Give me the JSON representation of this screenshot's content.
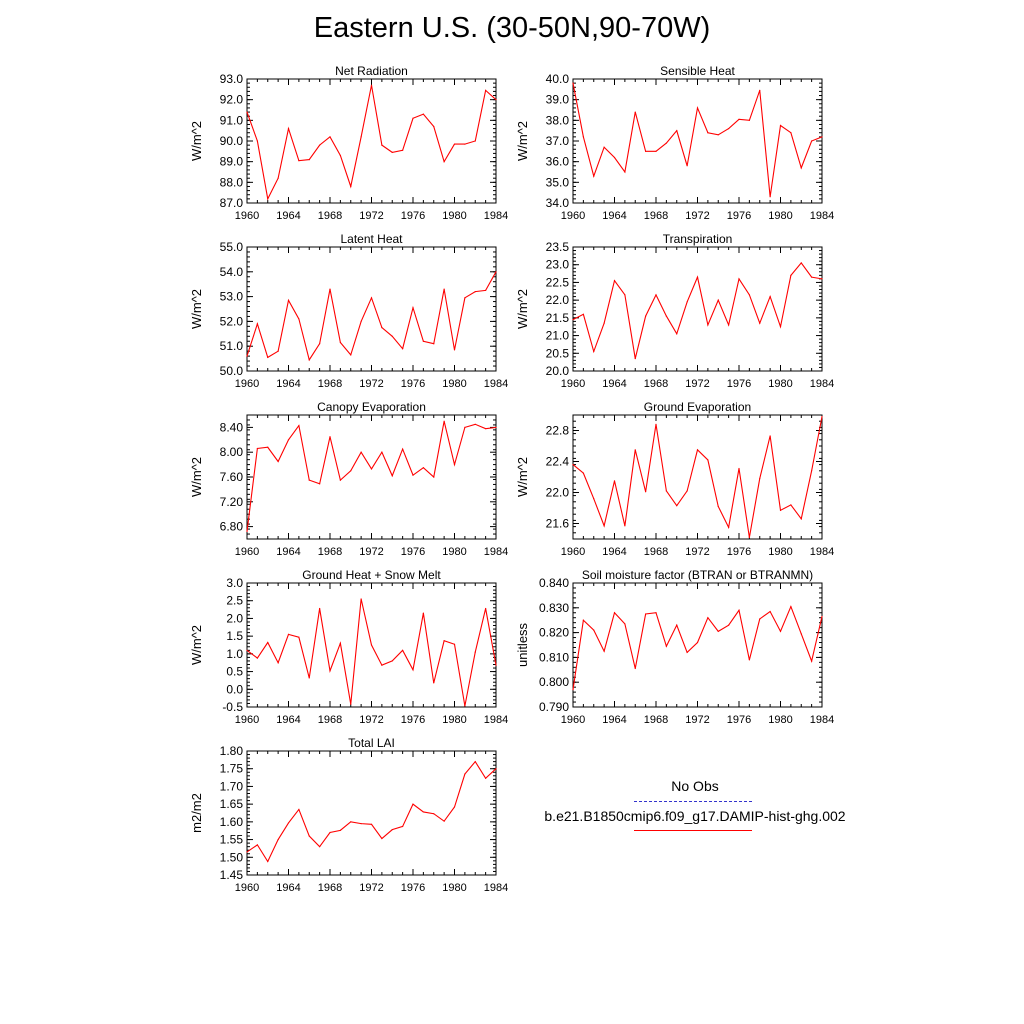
{
  "title": "Eastern U.S. (30-50N,90-70W)",
  "colors": {
    "model": "#ff0000",
    "obs": "#3333cc",
    "axis": "#000000"
  },
  "legend": {
    "obs_label": "No Obs",
    "model_label": "b.e21.B1850cmip6.f09_g17.DAMIP-hist-ghg.002"
  },
  "chart_data": [
    {
      "type": "line",
      "title": "Net Radiation",
      "ylabel": "W/m^2",
      "x": [
        1960,
        1961,
        1962,
        1963,
        1964,
        1965,
        1966,
        1967,
        1968,
        1969,
        1970,
        1971,
        1972,
        1973,
        1974,
        1975,
        1976,
        1977,
        1978,
        1979,
        1980,
        1981,
        1982,
        1983,
        1984
      ],
      "xlim": [
        1960,
        1984
      ],
      "xticks": [
        "1960",
        "1964",
        "1968",
        "1972",
        "1976",
        "1980",
        "1984"
      ],
      "ylim": [
        87.0,
        93.0
      ],
      "yticks": [
        "87.0",
        "88.0",
        "89.0",
        "90.0",
        "91.0",
        "92.0",
        "93.0"
      ],
      "series": [
        {
          "values": [
            91.4,
            90.0,
            87.2,
            88.2,
            90.6,
            89.05,
            89.1,
            89.8,
            90.2,
            89.3,
            87.8,
            90.2,
            92.7,
            89.8,
            89.45,
            89.55,
            91.1,
            91.3,
            90.7,
            89.0,
            89.85,
            89.85,
            90.0,
            92.45,
            92.0
          ]
        }
      ]
    },
    {
      "type": "line",
      "title": "Sensible Heat",
      "ylabel": "W/m^2",
      "x": [
        1960,
        1961,
        1962,
        1963,
        1964,
        1965,
        1966,
        1967,
        1968,
        1969,
        1970,
        1971,
        1972,
        1973,
        1974,
        1975,
        1976,
        1977,
        1978,
        1979,
        1980,
        1981,
        1982,
        1983,
        1984
      ],
      "xlim": [
        1960,
        1984
      ],
      "xticks": [
        "1960",
        "1964",
        "1968",
        "1972",
        "1976",
        "1980",
        "1984"
      ],
      "ylim": [
        34.0,
        40.0
      ],
      "yticks": [
        "34.0",
        "35.0",
        "36.0",
        "37.0",
        "38.0",
        "39.0",
        "40.0"
      ],
      "series": [
        {
          "values": [
            39.8,
            37.2,
            35.3,
            36.7,
            36.2,
            35.5,
            38.4,
            36.5,
            36.5,
            36.9,
            37.5,
            35.8,
            38.6,
            37.4,
            37.3,
            37.6,
            38.05,
            38.0,
            39.45,
            34.3,
            37.75,
            37.4,
            35.7,
            37.0,
            37.2
          ]
        }
      ]
    },
    {
      "type": "line",
      "title": "Latent Heat",
      "ylabel": "W/m^2",
      "x": [
        1960,
        1961,
        1962,
        1963,
        1964,
        1965,
        1966,
        1967,
        1968,
        1969,
        1970,
        1971,
        1972,
        1973,
        1974,
        1975,
        1976,
        1977,
        1978,
        1979,
        1980,
        1981,
        1982,
        1983,
        1984
      ],
      "xlim": [
        1960,
        1984
      ],
      "xticks": [
        "1960",
        "1964",
        "1968",
        "1972",
        "1976",
        "1980",
        "1984"
      ],
      "ylim": [
        50.0,
        55.0
      ],
      "yticks": [
        "50.0",
        "51.0",
        "52.0",
        "53.0",
        "54.0",
        "55.0"
      ],
      "series": [
        {
          "values": [
            50.6,
            51.9,
            50.55,
            50.8,
            52.85,
            52.1,
            50.45,
            51.1,
            53.3,
            51.15,
            50.65,
            52.0,
            52.95,
            51.75,
            51.4,
            50.9,
            52.55,
            51.2,
            51.1,
            53.3,
            50.85,
            52.95,
            53.2,
            53.25,
            54.0
          ]
        }
      ]
    },
    {
      "type": "line",
      "title": "Transpiration",
      "ylabel": "W/m^2",
      "x": [
        1960,
        1961,
        1962,
        1963,
        1964,
        1965,
        1966,
        1967,
        1968,
        1969,
        1970,
        1971,
        1972,
        1973,
        1974,
        1975,
        1976,
        1977,
        1978,
        1979,
        1980,
        1981,
        1982,
        1983,
        1984
      ],
      "xlim": [
        1960,
        1984
      ],
      "xticks": [
        "1960",
        "1964",
        "1968",
        "1972",
        "1976",
        "1980",
        "1984"
      ],
      "ylim": [
        20.0,
        23.5
      ],
      "yticks": [
        "20.0",
        "20.5",
        "21.0",
        "21.5",
        "22.0",
        "22.5",
        "23.0",
        "23.5"
      ],
      "series": [
        {
          "values": [
            21.45,
            21.6,
            20.55,
            21.35,
            22.55,
            22.15,
            20.35,
            21.55,
            22.15,
            21.55,
            21.05,
            21.95,
            22.65,
            21.3,
            22.0,
            21.3,
            22.6,
            22.15,
            21.35,
            22.1,
            21.25,
            22.7,
            23.05,
            22.65,
            22.6
          ]
        }
      ]
    },
    {
      "type": "line",
      "title": "Canopy Evaporation",
      "ylabel": "W/m^2",
      "x": [
        1960,
        1961,
        1962,
        1963,
        1964,
        1965,
        1966,
        1967,
        1968,
        1969,
        1970,
        1971,
        1972,
        1973,
        1974,
        1975,
        1976,
        1977,
        1978,
        1979,
        1980,
        1981,
        1982,
        1983,
        1984
      ],
      "xlim": [
        1960,
        1984
      ],
      "xticks": [
        "1960",
        "1964",
        "1968",
        "1972",
        "1976",
        "1980",
        "1984"
      ],
      "ylim": [
        6.6,
        8.6
      ],
      "yticks": [
        "6.80",
        "7.20",
        "7.60",
        "8.00",
        "8.40"
      ],
      "series": [
        {
          "values": [
            6.72,
            8.06,
            8.08,
            7.85,
            8.2,
            8.43,
            7.55,
            7.49,
            8.25,
            7.55,
            7.7,
            8.0,
            7.73,
            8.0,
            7.62,
            8.05,
            7.63,
            7.75,
            7.6,
            8.5,
            7.8,
            8.4,
            8.45,
            8.38,
            8.4
          ]
        }
      ]
    },
    {
      "type": "line",
      "title": "Ground Evaporation",
      "ylabel": "W/m^2",
      "x": [
        1960,
        1961,
        1962,
        1963,
        1964,
        1965,
        1966,
        1967,
        1968,
        1969,
        1970,
        1971,
        1972,
        1973,
        1974,
        1975,
        1976,
        1977,
        1978,
        1979,
        1980,
        1981,
        1982,
        1983,
        1984
      ],
      "xlim": [
        1960,
        1984
      ],
      "xticks": [
        "1960",
        "1964",
        "1968",
        "1972",
        "1976",
        "1980",
        "1984"
      ],
      "ylim": [
        21.4,
        23.0
      ],
      "yticks": [
        "21.6",
        "22.0",
        "22.4",
        "22.8"
      ],
      "series": [
        {
          "values": [
            22.36,
            22.25,
            21.92,
            21.57,
            22.15,
            21.57,
            22.55,
            22.01,
            22.88,
            22.02,
            21.83,
            22.02,
            22.55,
            22.42,
            21.82,
            21.55,
            22.31,
            21.42,
            22.18,
            22.73,
            21.77,
            21.84,
            21.66,
            22.28,
            22.98
          ]
        }
      ]
    },
    {
      "type": "line",
      "title": "Ground Heat + Snow Melt",
      "ylabel": "W/m^2",
      "x": [
        1960,
        1961,
        1962,
        1963,
        1964,
        1965,
        1966,
        1967,
        1968,
        1969,
        1970,
        1971,
        1972,
        1973,
        1974,
        1975,
        1976,
        1977,
        1978,
        1979,
        1980,
        1981,
        1982,
        1983,
        1984
      ],
      "xlim": [
        1960,
        1984
      ],
      "xticks": [
        "1960",
        "1964",
        "1968",
        "1972",
        "1976",
        "1980",
        "1984"
      ],
      "ylim": [
        -0.5,
        3.0
      ],
      "yticks": [
        "-0.5",
        "0.0",
        "0.5",
        "1.0",
        "1.5",
        "2.0",
        "2.5",
        "3.0"
      ],
      "series": [
        {
          "values": [
            1.1,
            0.88,
            1.32,
            0.75,
            1.55,
            1.47,
            0.32,
            2.28,
            0.52,
            1.3,
            -0.42,
            2.55,
            1.25,
            0.68,
            0.8,
            1.1,
            0.55,
            2.15,
            0.18,
            1.37,
            1.27,
            -0.47,
            1.05,
            2.28,
            0.68
          ]
        }
      ]
    },
    {
      "type": "line",
      "title": "Soil moisture factor (BTRAN or BTRANMN)",
      "ylabel": "unitless",
      "x": [
        1960,
        1961,
        1962,
        1963,
        1964,
        1965,
        1966,
        1967,
        1968,
        1969,
        1970,
        1971,
        1972,
        1973,
        1974,
        1975,
        1976,
        1977,
        1978,
        1979,
        1980,
        1981,
        1982,
        1983,
        1984
      ],
      "xlim": [
        1960,
        1984
      ],
      "xticks": [
        "1960",
        "1964",
        "1968",
        "1972",
        "1976",
        "1980",
        "1984"
      ],
      "ylim": [
        0.79,
        0.84
      ],
      "yticks": [
        "0.790",
        "0.800",
        "0.810",
        "0.820",
        "0.830",
        "0.840"
      ],
      "series": [
        {
          "values": [
            0.797,
            0.825,
            0.821,
            0.8125,
            0.828,
            0.8235,
            0.8055,
            0.8275,
            0.828,
            0.8145,
            0.823,
            0.812,
            0.816,
            0.826,
            0.8205,
            0.823,
            0.829,
            0.809,
            0.8255,
            0.8285,
            0.8205,
            0.8305,
            0.8195,
            0.8085,
            0.8265
          ]
        }
      ]
    },
    {
      "type": "line",
      "title": "Total LAI",
      "ylabel": "m2/m2",
      "x": [
        1960,
        1961,
        1962,
        1963,
        1964,
        1965,
        1966,
        1967,
        1968,
        1969,
        1970,
        1971,
        1972,
        1973,
        1974,
        1975,
        1976,
        1977,
        1978,
        1979,
        1980,
        1981,
        1982,
        1983,
        1984
      ],
      "xlim": [
        1960,
        1984
      ],
      "xticks": [
        "1960",
        "1964",
        "1968",
        "1972",
        "1976",
        "1980",
        "1984"
      ],
      "ylim": [
        1.45,
        1.8
      ],
      "yticks": [
        "1.45",
        "1.50",
        "1.55",
        "1.60",
        "1.65",
        "1.70",
        "1.75",
        "1.80"
      ],
      "series": [
        {
          "values": [
            1.515,
            1.535,
            1.488,
            1.55,
            1.597,
            1.635,
            1.56,
            1.53,
            1.57,
            1.576,
            1.6,
            1.595,
            1.593,
            1.553,
            1.578,
            1.587,
            1.65,
            1.628,
            1.623,
            1.602,
            1.642,
            1.735,
            1.77,
            1.723,
            1.75
          ]
        }
      ]
    }
  ]
}
